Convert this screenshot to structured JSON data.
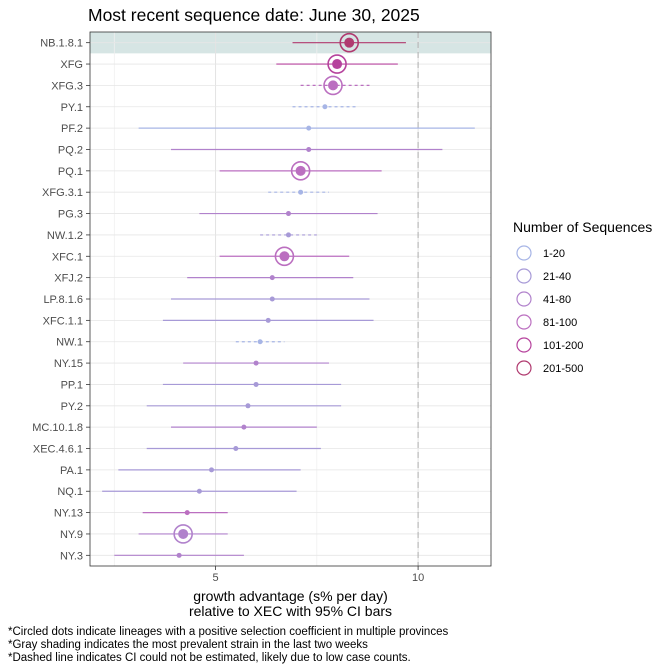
{
  "chart_data": {
    "type": "scatter",
    "title": "Most recent sequence date: June 30, 2025",
    "xlabel_line1": "growth advantage (s% per day)",
    "xlabel_line2": "relative to  XEC  with 95% CI bars",
    "xlim": [
      1.9,
      11.8
    ],
    "x_ticks": [
      5,
      10
    ],
    "reference_line": 10,
    "highlighted_category": "NB.1.8.1",
    "legend_title": "Number of Sequences",
    "legend": [
      {
        "label": "1-20",
        "color": "#a7b5e6"
      },
      {
        "label": "21-40",
        "color": "#a79ad7"
      },
      {
        "label": "41-80",
        "color": "#b182cc"
      },
      {
        "label": "81-100",
        "color": "#bb6fc0"
      },
      {
        "label": "101-200",
        "color": "#b6439d"
      },
      {
        "label": "201-500",
        "color": "#b03a6f"
      }
    ],
    "series": [
      {
        "name": "NB.1.8.1",
        "value": 8.3,
        "ci": [
          6.9,
          9.7
        ],
        "circled": true,
        "dashed": false,
        "seq_bin": "201-500"
      },
      {
        "name": "XFG",
        "value": 8.0,
        "ci": [
          6.5,
          9.5
        ],
        "circled": true,
        "dashed": false,
        "seq_bin": "101-200"
      },
      {
        "name": "XFG.3",
        "value": 7.9,
        "ci": [
          7.1,
          8.8
        ],
        "circled": true,
        "dashed": true,
        "seq_bin": "81-100"
      },
      {
        "name": "PY.1",
        "value": 7.7,
        "ci": [
          6.9,
          8.5
        ],
        "circled": false,
        "dashed": true,
        "seq_bin": "1-20"
      },
      {
        "name": "PF.2",
        "value": 7.3,
        "ci": [
          3.1,
          11.4
        ],
        "circled": false,
        "dashed": false,
        "seq_bin": "1-20"
      },
      {
        "name": "PQ.2",
        "value": 7.3,
        "ci": [
          3.9,
          10.6
        ],
        "circled": false,
        "dashed": false,
        "seq_bin": "41-80"
      },
      {
        "name": "PQ.1",
        "value": 7.1,
        "ci": [
          5.1,
          9.1
        ],
        "circled": true,
        "dashed": false,
        "seq_bin": "81-100"
      },
      {
        "name": "XFG.3.1",
        "value": 7.1,
        "ci": [
          6.3,
          7.8
        ],
        "circled": false,
        "dashed": true,
        "seq_bin": "1-20"
      },
      {
        "name": "PG.3",
        "value": 6.8,
        "ci": [
          4.6,
          9.0
        ],
        "circled": false,
        "dashed": false,
        "seq_bin": "41-80"
      },
      {
        "name": "NW.1.2",
        "value": 6.8,
        "ci": [
          6.1,
          7.5
        ],
        "circled": false,
        "dashed": true,
        "seq_bin": "21-40"
      },
      {
        "name": "XFC.1",
        "value": 6.7,
        "ci": [
          5.1,
          8.3
        ],
        "circled": true,
        "dashed": false,
        "seq_bin": "81-100"
      },
      {
        "name": "XFJ.2",
        "value": 6.4,
        "ci": [
          4.3,
          8.4
        ],
        "circled": false,
        "dashed": false,
        "seq_bin": "41-80"
      },
      {
        "name": "LP.8.1.6",
        "value": 6.4,
        "ci": [
          3.9,
          8.8
        ],
        "circled": false,
        "dashed": false,
        "seq_bin": "21-40"
      },
      {
        "name": "XFC.1.1",
        "value": 6.3,
        "ci": [
          3.7,
          8.9
        ],
        "circled": false,
        "dashed": false,
        "seq_bin": "21-40"
      },
      {
        "name": "NW.1",
        "value": 6.1,
        "ci": [
          5.5,
          6.7
        ],
        "circled": false,
        "dashed": true,
        "seq_bin": "1-20"
      },
      {
        "name": "NY.15",
        "value": 6.0,
        "ci": [
          4.2,
          7.8
        ],
        "circled": false,
        "dashed": false,
        "seq_bin": "41-80"
      },
      {
        "name": "PP.1",
        "value": 6.0,
        "ci": [
          3.7,
          8.1
        ],
        "circled": false,
        "dashed": false,
        "seq_bin": "21-40"
      },
      {
        "name": "PY.2",
        "value": 5.8,
        "ci": [
          3.3,
          8.1
        ],
        "circled": false,
        "dashed": false,
        "seq_bin": "21-40"
      },
      {
        "name": "MC.10.1.8",
        "value": 5.7,
        "ci": [
          3.9,
          7.5
        ],
        "circled": false,
        "dashed": false,
        "seq_bin": "41-80"
      },
      {
        "name": "XEC.4.6.1",
        "value": 5.5,
        "ci": [
          3.3,
          7.6
        ],
        "circled": false,
        "dashed": false,
        "seq_bin": "21-40"
      },
      {
        "name": "PA.1",
        "value": 4.9,
        "ci": [
          2.6,
          7.1
        ],
        "circled": false,
        "dashed": false,
        "seq_bin": "21-40"
      },
      {
        "name": "NQ.1",
        "value": 4.6,
        "ci": [
          2.2,
          7.0
        ],
        "circled": false,
        "dashed": false,
        "seq_bin": "21-40"
      },
      {
        "name": "NY.13",
        "value": 4.3,
        "ci": [
          3.2,
          5.3
        ],
        "circled": false,
        "dashed": false,
        "seq_bin": "81-100"
      },
      {
        "name": "NY.9",
        "value": 4.2,
        "ci": [
          3.1,
          5.3
        ],
        "circled": true,
        "dashed": false,
        "seq_bin": "41-80"
      },
      {
        "name": "NY.3",
        "value": 4.1,
        "ci": [
          2.5,
          5.7
        ],
        "circled": false,
        "dashed": false,
        "seq_bin": "41-80"
      }
    ]
  },
  "footnotes": [
    "*Circled dots indicate lineages with a positive selection coefficient in multiple provinces",
    "*Gray shading indicates the most prevalent strain in the last two weeks",
    "*Dashed line indicates CI could not be estimated, likely due to low case counts."
  ]
}
